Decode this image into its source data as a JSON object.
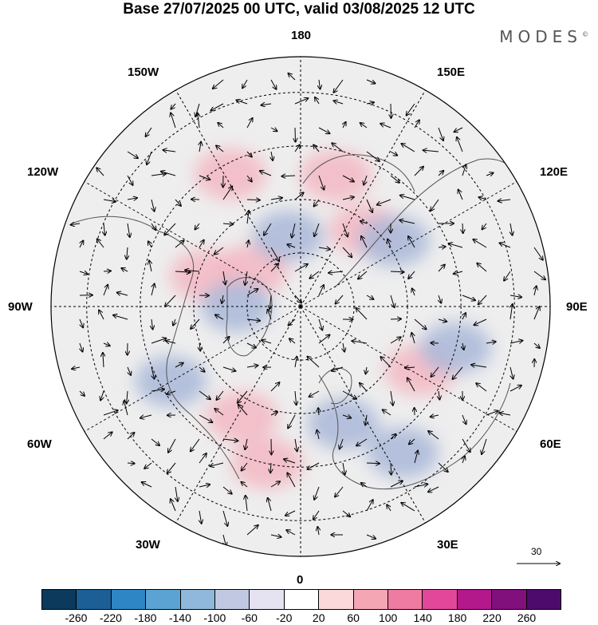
{
  "title": "Base 27/07/2025 00 UTC, valid 03/08/2025 12 UTC",
  "logo": "MODES",
  "logo_mark": "©",
  "meridian_labels": {
    "top": "180",
    "top_left": "150W",
    "top_right": "150E",
    "upper_left": "120W",
    "upper_right": "120E",
    "left": "90W",
    "right": "90E",
    "lower_left": "60W",
    "lower_right": "60E",
    "bottom_left": "30W",
    "bottom_right": "30E",
    "bottom": "0"
  },
  "vector_scale": "30",
  "colorbar": {
    "colors": [
      "#0b3a5c",
      "#1c5f97",
      "#2f86c4",
      "#5ba3d3",
      "#8fb8dc",
      "#c1c8e2",
      "#e5e3f1",
      "#ffffff",
      "#fbd8da",
      "#f5a6b5",
      "#ef7aa2",
      "#e2479a",
      "#b3198b",
      "#810f7c",
      "#4d0b6b"
    ],
    "ticks": [
      "-260",
      "-220",
      "-180",
      "-140",
      "-100",
      "-60",
      "-20",
      "20",
      "60",
      "100",
      "140",
      "180",
      "220",
      "260"
    ]
  },
  "anomaly_blobs": [
    {
      "sign": "positive",
      "lat": 52,
      "lon": 165
    },
    {
      "sign": "positive",
      "lat": 48,
      "lon": -152
    },
    {
      "sign": "positive",
      "lat": 62,
      "lon": -108
    },
    {
      "sign": "positive",
      "lat": 73,
      "lon": -128
    },
    {
      "sign": "positive",
      "lat": 62,
      "lon": 140
    },
    {
      "sign": "positive",
      "lat": 52,
      "lon": 62
    },
    {
      "sign": "positive",
      "lat": 55,
      "lon": -28
    },
    {
      "sign": "positive",
      "lat": 45,
      "lon": -12
    },
    {
      "sign": "negative",
      "lat": 70,
      "lon": -170
    },
    {
      "sign": "negative",
      "lat": 48,
      "lon": -60
    },
    {
      "sign": "negative",
      "lat": 72,
      "lon": -90
    },
    {
      "sign": "negative",
      "lat": 55,
      "lon": 20
    },
    {
      "sign": "negative",
      "lat": 58,
      "lon": 125
    },
    {
      "sign": "negative",
      "lat": 45,
      "lon": 75
    },
    {
      "sign": "negative",
      "lat": 40,
      "lon": 35
    }
  ]
}
